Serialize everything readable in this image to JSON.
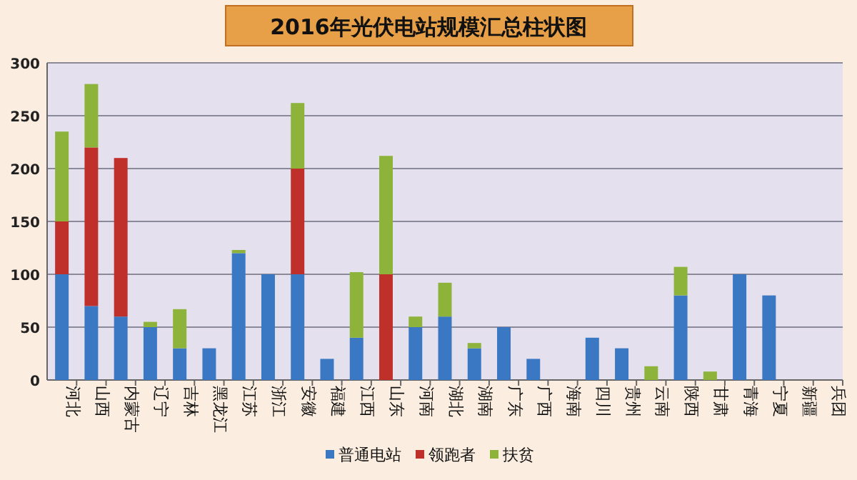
{
  "chart_data": {
    "type": "bar",
    "title": "2016年光伏电站规模汇总柱状图",
    "stacked": true,
    "grid": "y",
    "legend": "bottom",
    "categories": [
      "河北",
      "山西",
      "内蒙古",
      "辽宁",
      "吉林",
      "黑龙江",
      "江苏",
      "浙江",
      "安徽",
      "福建",
      "江西",
      "山东",
      "河南",
      "湖北",
      "湖南",
      "广东",
      "广西",
      "海南",
      "四川",
      "贵州",
      "云南",
      "陕西",
      "甘肃",
      "青海",
      "宁夏",
      "新疆",
      "兵团"
    ],
    "series": [
      {
        "name": "普通电站",
        "color": "#3a78c3",
        "values": [
          100,
          70,
          60,
          50,
          30,
          30,
          120,
          100,
          100,
          20,
          40,
          null,
          50,
          60,
          30,
          50,
          20,
          null,
          40,
          30,
          null,
          80,
          null,
          100,
          80,
          null,
          null
        ]
      },
      {
        "name": "领跑者",
        "color": "#c0302b",
        "values": [
          50,
          150,
          150,
          null,
          null,
          null,
          null,
          null,
          100,
          null,
          null,
          100,
          null,
          null,
          null,
          null,
          null,
          null,
          null,
          null,
          null,
          null,
          null,
          null,
          null,
          null,
          null
        ]
      },
      {
        "name": "扶贫",
        "color": "#8db33a",
        "values": [
          85,
          60,
          null,
          5,
          37,
          null,
          3,
          null,
          62,
          null,
          62,
          112,
          10,
          32,
          5,
          null,
          null,
          null,
          null,
          null,
          13,
          27,
          8,
          null,
          null,
          null,
          null
        ]
      }
    ],
    "ylim": [
      0,
      300
    ],
    "yticks": [
      0,
      50,
      100,
      150,
      200,
      250,
      300
    ]
  }
}
